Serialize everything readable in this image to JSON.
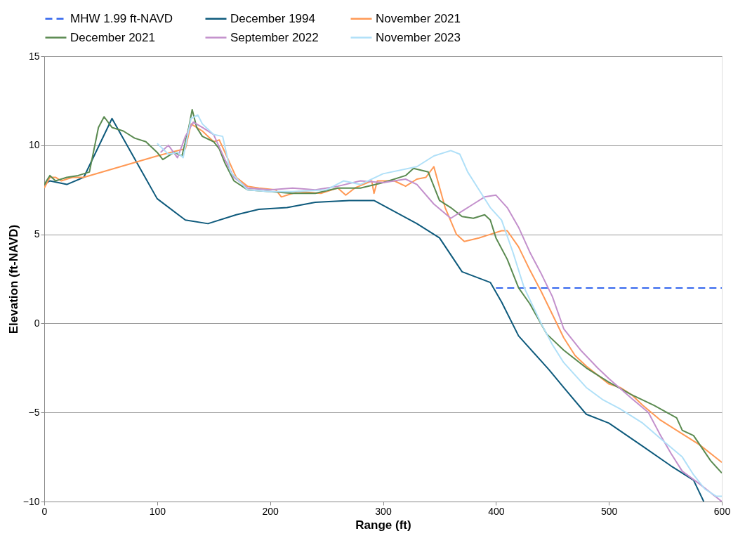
{
  "chart_data": {
    "type": "line",
    "xlabel": "Range (ft)",
    "ylabel": "Elevation (ft-NAVD)",
    "xlim": [
      0,
      600
    ],
    "xticks": [
      0,
      100,
      200,
      300,
      400,
      500,
      600
    ],
    "ylim": [
      -10,
      15
    ],
    "yticks": [
      -10,
      -5,
      0,
      5,
      10,
      15
    ],
    "grid": "y",
    "legend": "top",
    "marker": "none",
    "series": [
      {
        "name": "MHW 1.99 ft-NAVD",
        "color": "#3366ee",
        "line_style": "dashed",
        "x": [
          400,
          600
        ],
        "values": [
          1.99,
          1.99
        ]
      },
      {
        "name": "December 1994",
        "color": "#0e5a7c",
        "x": [
          0,
          5,
          20,
          35,
          60,
          100,
          125,
          145,
          170,
          190,
          215,
          240,
          270,
          292,
          330,
          350,
          370,
          395,
          405,
          420,
          447,
          460,
          480,
          500,
          530,
          555,
          575,
          584
        ],
        "values": [
          7.8,
          8,
          7.8,
          8.2,
          11.5,
          7,
          5.8,
          5.6,
          6.1,
          6.4,
          6.5,
          6.8,
          6.9,
          6.9,
          5.6,
          4.8,
          2.9,
          2.3,
          1.2,
          -0.7,
          -2.6,
          -3.6,
          -5.1,
          -5.6,
          -6.9,
          -8,
          -8.8,
          -10
        ]
      },
      {
        "name": "November 2021",
        "color": "#ff9955",
        "x": [
          0,
          5,
          10,
          15,
          25,
          35,
          100,
          118,
          125,
          130,
          140,
          150,
          155,
          160,
          170,
          180,
          190,
          205,
          210,
          225,
          245,
          260,
          267,
          275,
          290,
          292,
          295,
          310,
          320,
          330,
          338,
          345,
          355,
          365,
          372,
          385,
          395,
          405,
          410,
          420,
          430,
          440,
          450,
          460,
          470,
          480,
          500,
          510,
          520,
          530,
          545,
          560,
          580,
          600
        ],
        "values": [
          7.6,
          8.2,
          8.2,
          8,
          8.2,
          8.2,
          9.4,
          9.7,
          9.8,
          11.2,
          10.8,
          10.2,
          10.3,
          9.6,
          8.2,
          7.7,
          7.6,
          7.5,
          7.1,
          7.4,
          7.3,
          7.6,
          7.2,
          7.6,
          8.0,
          7.3,
          8.0,
          8.0,
          7.7,
          8.1,
          8.2,
          8.8,
          6.5,
          5.0,
          4.6,
          4.8,
          5.0,
          5.2,
          5.2,
          4.3,
          3.0,
          1.8,
          0.5,
          -0.8,
          -1.8,
          -2.4,
          -3.4,
          -3.6,
          -4.0,
          -4.6,
          -5.4,
          -6.0,
          -6.8,
          -7.8
        ]
      },
      {
        "name": "December 2021",
        "color": "#5a8a50",
        "x": [
          0,
          5,
          10,
          20,
          30,
          40,
          48,
          53,
          60,
          70,
          80,
          90,
          100,
          105,
          115,
          122,
          128,
          131,
          135,
          140,
          150,
          155,
          160,
          168,
          180,
          200,
          220,
          240,
          260,
          280,
          300,
          320,
          327,
          340,
          350,
          360,
          370,
          380,
          390,
          395,
          400,
          410,
          420,
          430,
          445,
          460,
          480,
          500,
          520,
          540,
          560,
          565,
          575,
          590,
          600
        ],
        "values": [
          7.8,
          8.3,
          8,
          8.2,
          8.3,
          8.5,
          11,
          11.6,
          11,
          10.8,
          10.4,
          10.2,
          9.6,
          9.2,
          9.6,
          9.4,
          11,
          12,
          11,
          10.5,
          10.2,
          9.8,
          9,
          8,
          7.5,
          7.4,
          7.3,
          7.3,
          7.6,
          7.6,
          7.9,
          8.3,
          8.7,
          8.5,
          6.9,
          6.5,
          6.0,
          5.9,
          6.1,
          5.8,
          4.8,
          3.6,
          2.0,
          1.1,
          -0.6,
          -1.5,
          -2.5,
          -3.3,
          -4.0,
          -4.6,
          -5.3,
          -6.0,
          -6.3,
          -7.7,
          -8.4
        ]
      },
      {
        "name": "September 2022",
        "color": "#c390cc",
        "x": [
          103,
          110,
          118,
          125,
          132,
          140,
          150,
          160,
          168,
          180,
          200,
          220,
          240,
          260,
          280,
          300,
          320,
          330,
          345,
          360,
          370,
          380,
          390,
          400,
          410,
          420,
          430,
          440,
          450,
          460,
          475,
          490,
          500,
          520,
          535,
          545,
          555,
          565,
          580,
          590,
          600
        ],
        "values": [
          9.6,
          10.0,
          9.3,
          10.5,
          11.3,
          11,
          10.6,
          9.2,
          8.2,
          7.6,
          7.5,
          7.6,
          7.5,
          7.7,
          8.0,
          7.9,
          8.1,
          7.8,
          6.7,
          5.9,
          6.3,
          6.7,
          7.1,
          7.2,
          6.5,
          5.4,
          4.0,
          2.8,
          1.5,
          -0.3,
          -1.5,
          -2.5,
          -3.1,
          -4.2,
          -5.0,
          -6.2,
          -7.3,
          -8.3,
          -9.0,
          -9.5,
          -10
        ]
      },
      {
        "name": "November 2023",
        "color": "#b0e0f8",
        "x": [
          100,
          110,
          118,
          123,
          130,
          136,
          140,
          150,
          158,
          165,
          180,
          200,
          220,
          250,
          265,
          280,
          300,
          330,
          345,
          360,
          368,
          375,
          385,
          395,
          405,
          415,
          425,
          440,
          450,
          460,
          470,
          480,
          495,
          510,
          530,
          550,
          565,
          575,
          585,
          595,
          600
        ],
        "values": [
          10.1,
          9.5,
          9.6,
          9.3,
          11.5,
          11.7,
          11.2,
          10.6,
          10.5,
          8.5,
          7.5,
          7.4,
          7.4,
          7.5,
          8.0,
          7.8,
          8.4,
          8.8,
          9.4,
          9.7,
          9.5,
          8.5,
          7.5,
          6.5,
          5.8,
          4.0,
          2.0,
          0.0,
          -1.2,
          -2.2,
          -2.9,
          -3.6,
          -4.3,
          -4.8,
          -5.6,
          -6.7,
          -7.5,
          -8.5,
          -9.3,
          -9.7,
          -9.7
        ]
      }
    ]
  }
}
